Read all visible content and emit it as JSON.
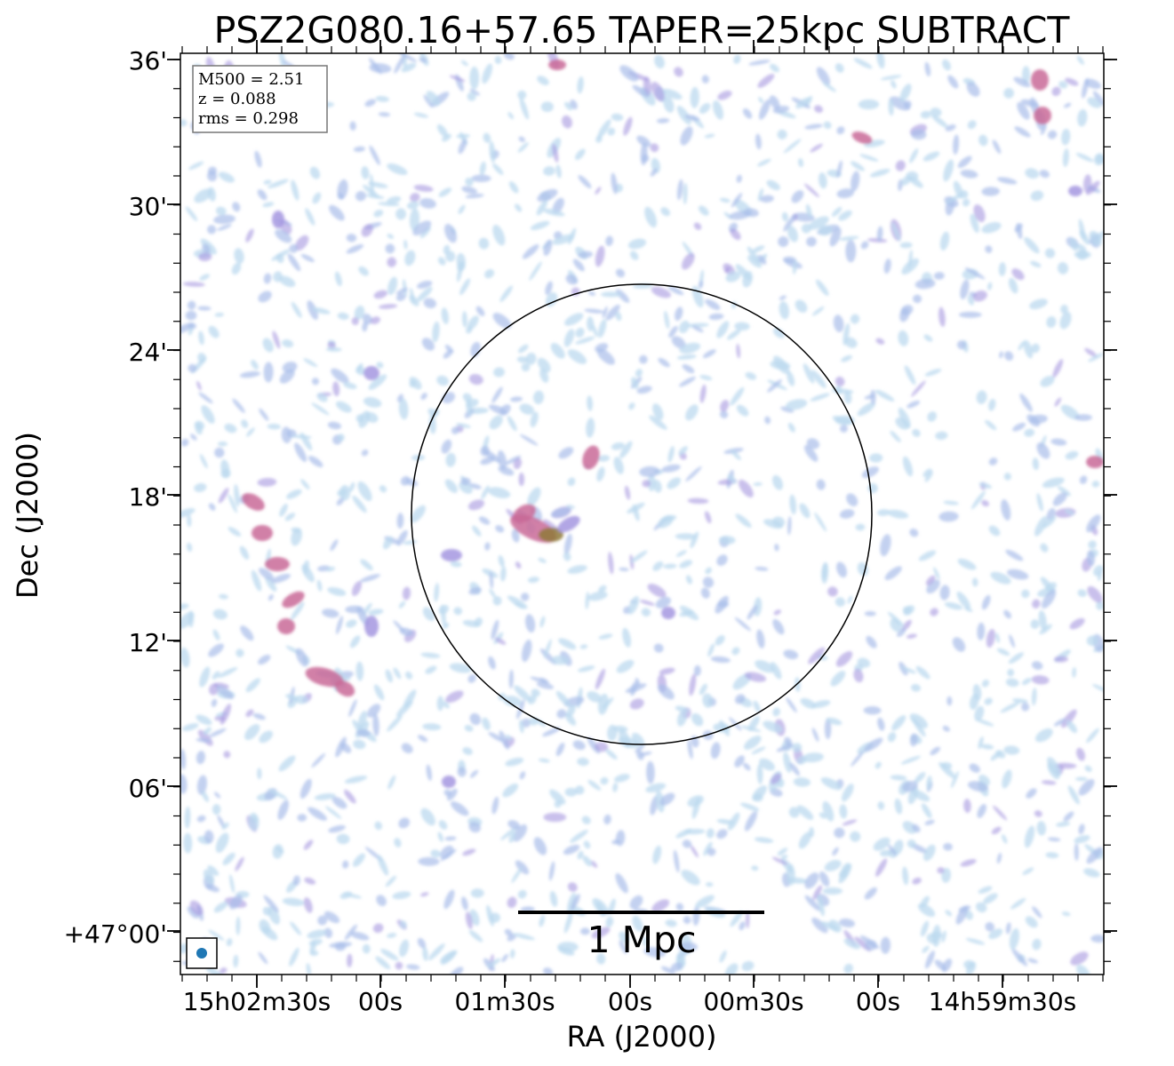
{
  "chart_data": {
    "type": "heatmap",
    "title": "PSZ2G080.16+57.65 TAPER=25kpc SUBTRACT",
    "xlabel": "RA (J2000)",
    "ylabel": "Dec (J2000)",
    "x_ticks": [
      "15h02m30s",
      "00s",
      "01m30s",
      "00s",
      "00m30s",
      "00s",
      "14h59m30s"
    ],
    "y_ticks": [
      "36'",
      "30'",
      "24'",
      "18'",
      "12'",
      "06'",
      "+47°00'"
    ],
    "info_box": [
      "M500 = 2.51",
      "z = 0.088",
      "rms = 0.298"
    ],
    "scale_bar_label": "1 Mpc",
    "grid": false,
    "colors": {
      "faint": "#bcd9ef",
      "low": "#a9bdea",
      "mid": "#a596e0",
      "high": "#c96a98",
      "peak": "#8f7a3a",
      "beam": "#1f77b4"
    }
  }
}
